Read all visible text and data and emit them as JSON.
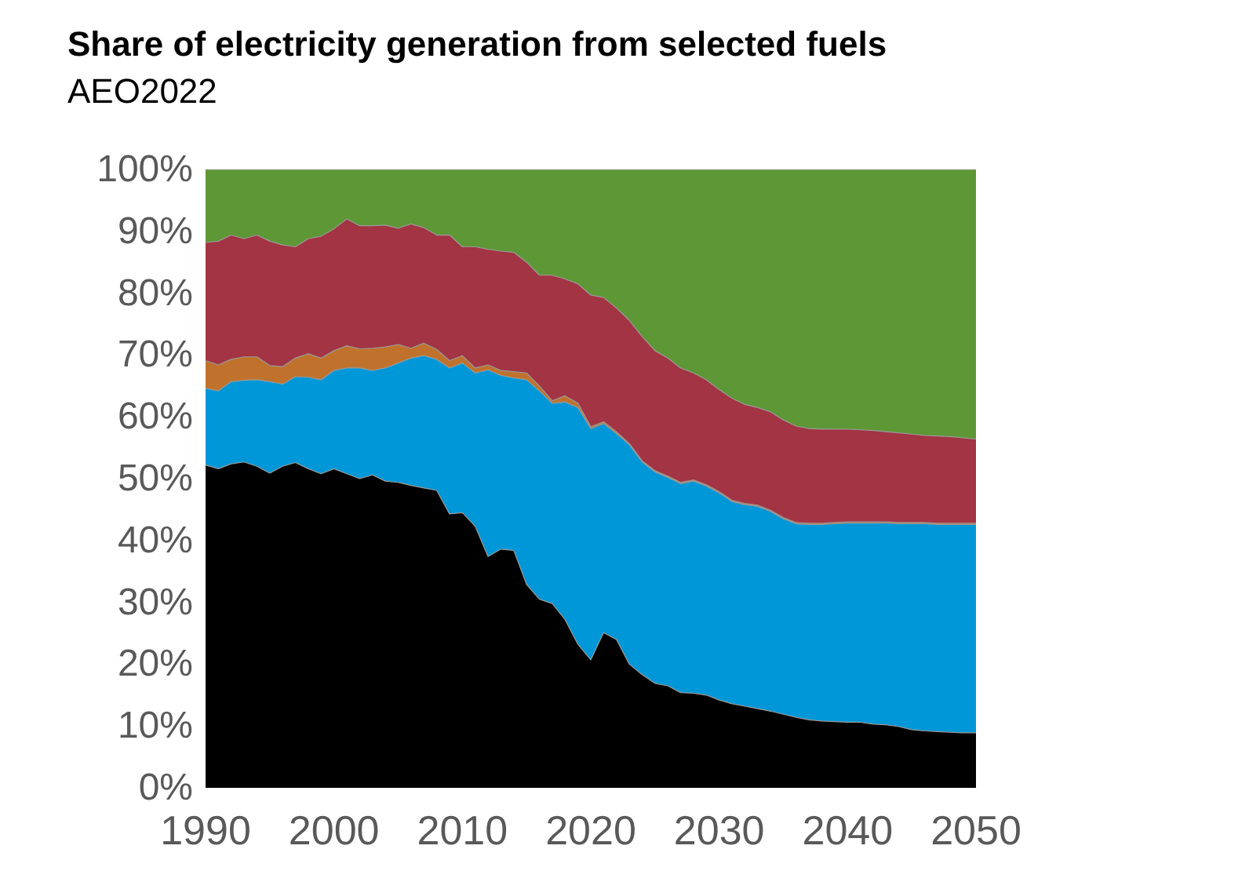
{
  "chart_data": {
    "type": "area",
    "title": "Share of electricity generation from selected fuels",
    "subtitle": "AEO2022",
    "stacked": true,
    "grid": false,
    "legend": false,
    "x": [
      1990,
      1991,
      1992,
      1993,
      1994,
      1995,
      1996,
      1997,
      1998,
      1999,
      2000,
      2001,
      2002,
      2003,
      2004,
      2005,
      2006,
      2007,
      2008,
      2009,
      2010,
      2011,
      2012,
      2013,
      2014,
      2015,
      2016,
      2017,
      2018,
      2019,
      2020,
      2021,
      2022,
      2023,
      2024,
      2025,
      2026,
      2027,
      2028,
      2029,
      2030,
      2031,
      2032,
      2033,
      2034,
      2035,
      2036,
      2037,
      2038,
      2039,
      2040,
      2041,
      2042,
      2043,
      2044,
      2045,
      2046,
      2047,
      2048,
      2049,
      2050
    ],
    "xlim": [
      1990,
      2050
    ],
    "xticks": [
      1990,
      2000,
      2010,
      2020,
      2030,
      2040,
      2050
    ],
    "ylim": [
      0,
      100
    ],
    "yticks": [
      {
        "value": 0,
        "label": "0%"
      },
      {
        "value": 10,
        "label": "10%"
      },
      {
        "value": 20,
        "label": "20%"
      },
      {
        "value": 30,
        "label": "30%"
      },
      {
        "value": 40,
        "label": "40%"
      },
      {
        "value": 50,
        "label": "50%"
      },
      {
        "value": 60,
        "label": "60%"
      },
      {
        "value": 70,
        "label": "70%"
      },
      {
        "value": 80,
        "label": "80%"
      },
      {
        "value": 90,
        "label": "90%"
      },
      {
        "value": 100,
        "label": "100%"
      }
    ],
    "series": [
      {
        "color": "#000000",
        "values": [
          52.2,
          51.6,
          52.4,
          52.7,
          52.0,
          50.9,
          52.0,
          52.6,
          51.6,
          50.8,
          51.6,
          50.8,
          50.0,
          50.6,
          49.6,
          49.4,
          48.9,
          48.5,
          48.1,
          44.3,
          44.5,
          42.3,
          37.4,
          38.6,
          38.4,
          32.9,
          30.5,
          29.8,
          27.2,
          23.2,
          20.7,
          25.1,
          24.0,
          20.0,
          18.3,
          16.9,
          16.5,
          15.4,
          15.3,
          15.0,
          14.2,
          13.6,
          13.2,
          12.8,
          12.4,
          11.9,
          11.4,
          11.0,
          10.8,
          10.7,
          10.6,
          10.6,
          10.3,
          10.2,
          9.9,
          9.4,
          9.2,
          9.1,
          9.0,
          8.9,
          8.9
        ]
      },
      {
        "color": "#0097d8",
        "values": [
          12.4,
          12.6,
          13.3,
          13.2,
          14.0,
          14.8,
          13.3,
          13.9,
          14.8,
          15.2,
          15.9,
          17.1,
          17.9,
          16.9,
          18.3,
          19.3,
          20.6,
          21.4,
          21.2,
          23.6,
          24.2,
          24.8,
          30.2,
          28.1,
          27.9,
          33.1,
          33.7,
          32.4,
          35.2,
          38.3,
          37.4,
          33.8,
          33.3,
          35.5,
          34.4,
          34.2,
          33.7,
          33.8,
          34.3,
          33.8,
          33.5,
          32.7,
          32.6,
          32.7,
          32.3,
          31.6,
          31.3,
          31.6,
          31.8,
          32.0,
          32.2,
          32.2,
          32.5,
          32.6,
          32.8,
          33.3,
          33.5,
          33.5,
          33.6,
          33.7,
          33.7
        ]
      },
      {
        "color": "#c0722c",
        "values": [
          4.5,
          4.2,
          3.6,
          3.8,
          3.7,
          2.6,
          2.8,
          3.0,
          3.8,
          3.5,
          3.2,
          3.6,
          3.1,
          3.6,
          3.4,
          3.0,
          1.6,
          2.0,
          1.6,
          1.2,
          1.2,
          0.8,
          0.8,
          0.8,
          1.0,
          1.1,
          0.8,
          0.4,
          1.0,
          0.7,
          0.3,
          0.3,
          0.3,
          0.2,
          0.2,
          0.2,
          0.2,
          0.2,
          0.2,
          0.2,
          0.2,
          0.2,
          0.2,
          0.2,
          0.2,
          0.2,
          0.2,
          0.2,
          0.2,
          0.2,
          0.2,
          0.2,
          0.2,
          0.2,
          0.2,
          0.2,
          0.2,
          0.2,
          0.2,
          0.2,
          0.2
        ]
      },
      {
        "color": "#a33443",
        "values": [
          19.1,
          20.0,
          20.1,
          19.1,
          19.7,
          20.1,
          19.7,
          18.0,
          18.6,
          19.7,
          19.7,
          20.5,
          19.9,
          19.8,
          19.7,
          18.8,
          20.1,
          18.7,
          18.5,
          20.3,
          17.6,
          19.6,
          18.7,
          19.3,
          19.3,
          17.9,
          17.9,
          20.3,
          18.9,
          19.3,
          21.3,
          20.1,
          20.0,
          19.9,
          20.1,
          19.4,
          19.1,
          18.5,
          17.3,
          17.0,
          16.5,
          16.5,
          16.0,
          15.8,
          15.9,
          15.8,
          15.6,
          15.3,
          15.2,
          15.1,
          15.0,
          14.9,
          14.8,
          14.6,
          14.5,
          14.3,
          14.1,
          14.1,
          14.0,
          13.8,
          13.6
        ]
      },
      {
        "color": "#5e9735",
        "values": [
          11.8,
          11.6,
          10.6,
          11.2,
          10.6,
          11.6,
          12.2,
          12.5,
          11.2,
          10.8,
          9.6,
          8.0,
          9.1,
          9.1,
          9.0,
          9.5,
          8.8,
          9.4,
          10.6,
          10.6,
          12.5,
          12.5,
          12.9,
          13.2,
          13.4,
          15.0,
          17.1,
          17.1,
          17.7,
          18.5,
          20.3,
          20.7,
          22.4,
          24.4,
          27.0,
          29.3,
          30.5,
          32.1,
          32.9,
          34.0,
          35.6,
          37.0,
          38.0,
          38.5,
          39.2,
          40.5,
          41.5,
          41.9,
          42.0,
          42.0,
          42.0,
          42.1,
          42.2,
          42.4,
          42.6,
          42.8,
          43.0,
          43.1,
          43.2,
          43.4,
          43.6
        ]
      }
    ]
  }
}
